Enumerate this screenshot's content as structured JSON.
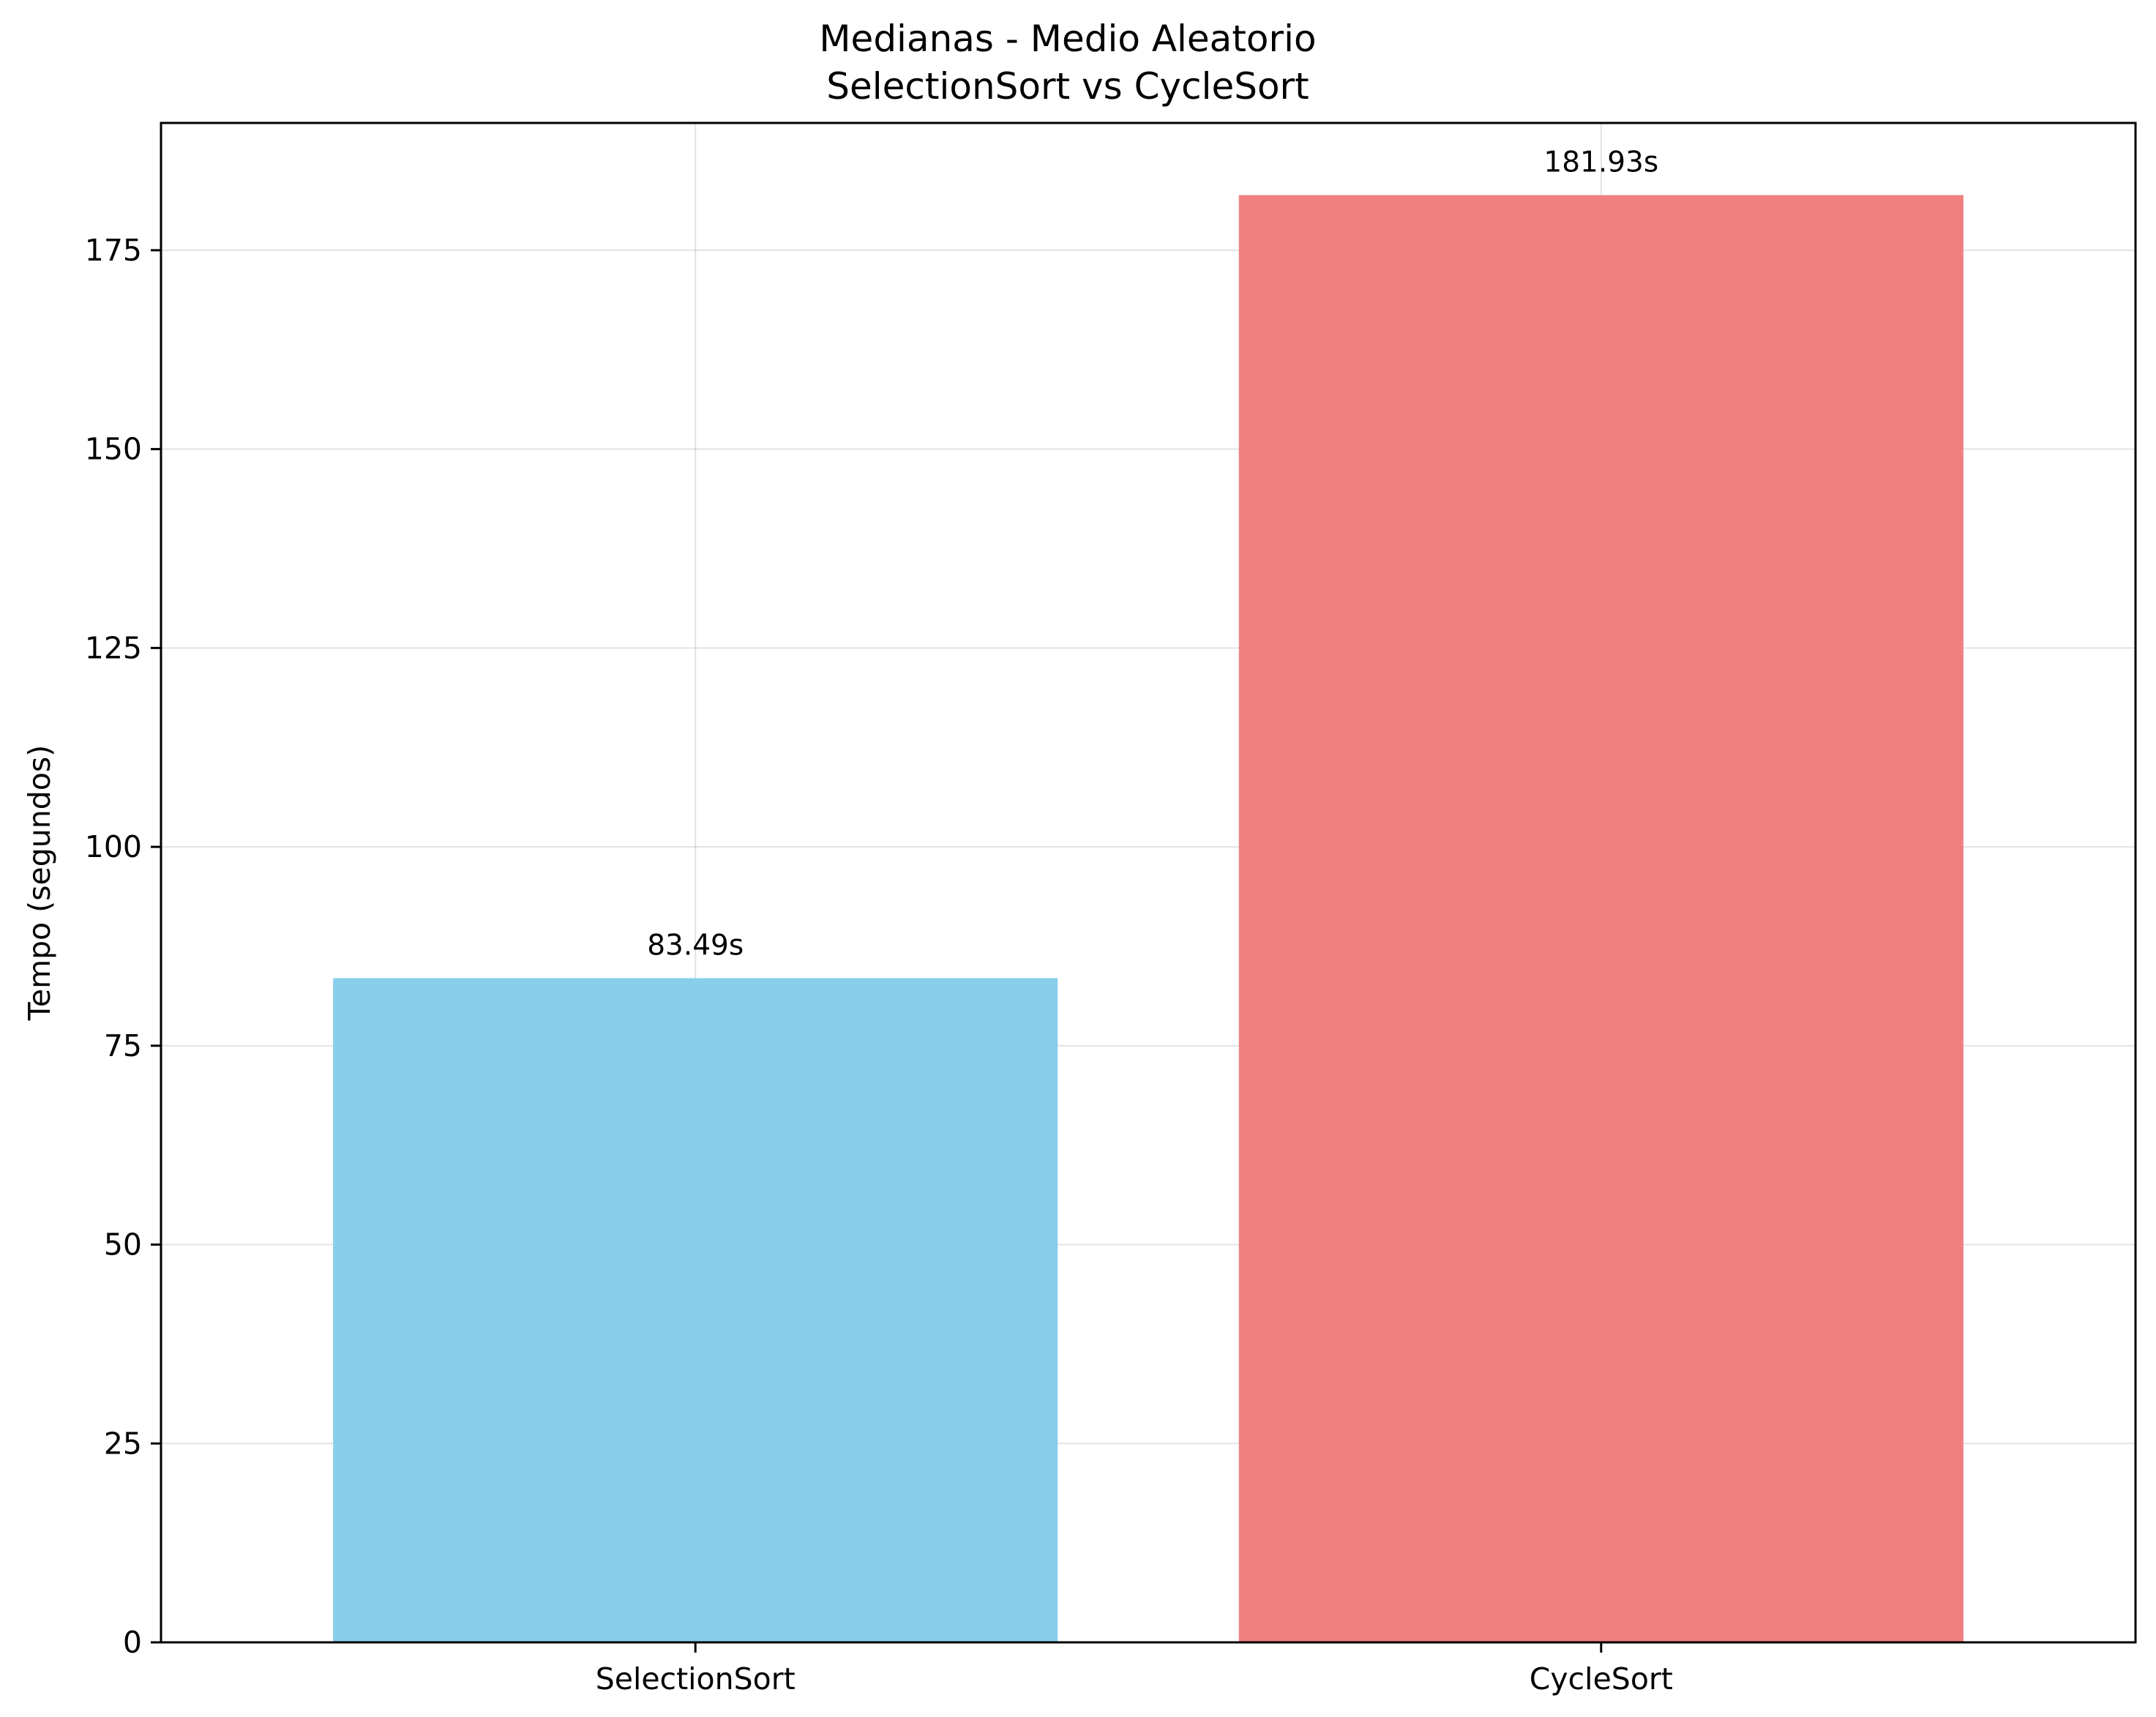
{
  "chart_data": {
    "type": "bar",
    "title": "Medianas - Medio Aleatorio",
    "subtitle": "SelectionSort vs CycleSort",
    "xlabel": "",
    "ylabel": "Tempo (segundos)",
    "categories": [
      "SelectionSort",
      "CycleSort"
    ],
    "values": [
      83.49,
      181.93
    ],
    "value_labels": [
      "83.49s",
      "181.93s"
    ],
    "colors": [
      "#87CEEB",
      "#F08080"
    ],
    "ylim": [
      0,
      191
    ],
    "yticks": [
      0,
      25,
      50,
      75,
      100,
      125,
      150,
      175
    ],
    "grid": true,
    "legend": "none"
  }
}
